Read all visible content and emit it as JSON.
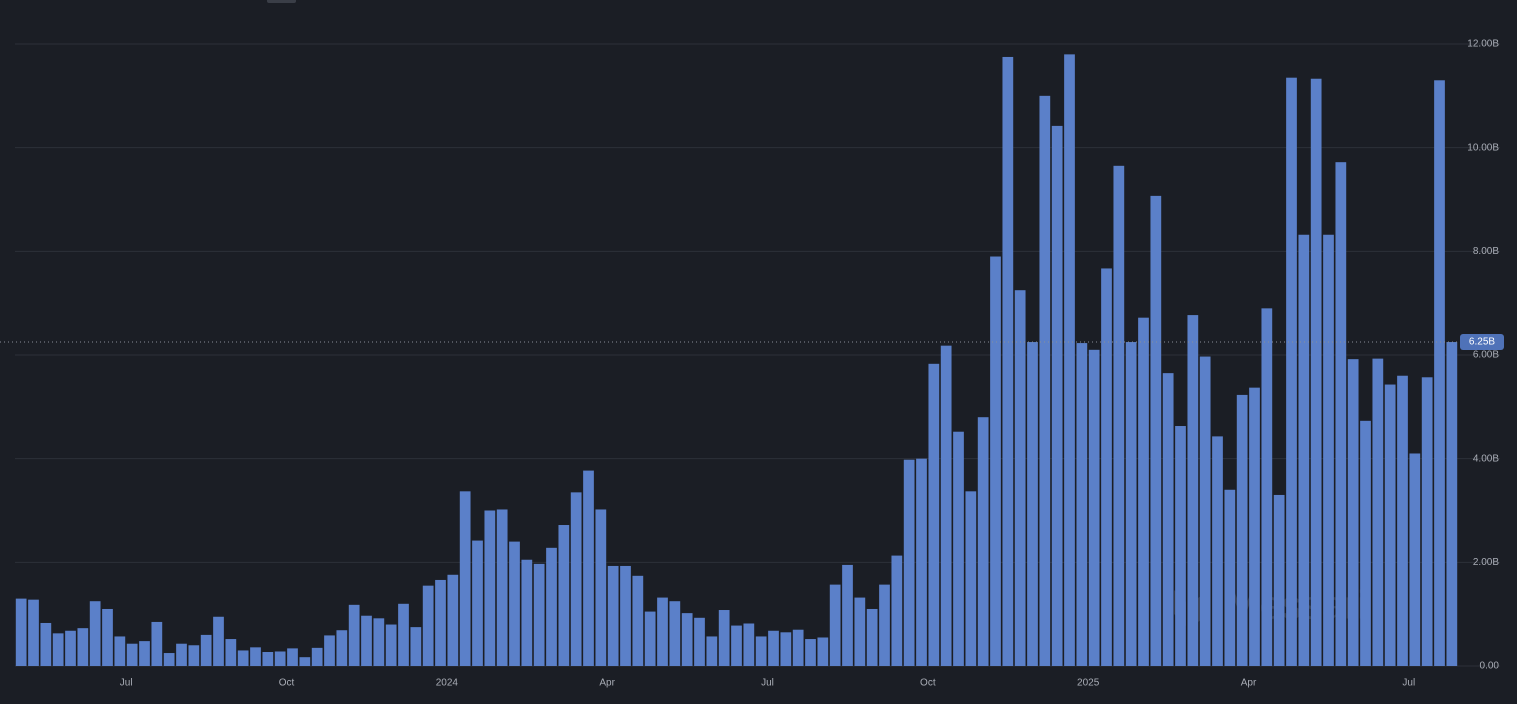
{
  "chart_data": {
    "type": "bar",
    "categories": [
      null,
      null,
      null,
      null,
      null,
      null,
      null,
      null,
      null,
      "Jul",
      null,
      null,
      null,
      null,
      null,
      null,
      null,
      null,
      null,
      null,
      null,
      null,
      "Oct",
      null,
      null,
      null,
      null,
      null,
      null,
      null,
      null,
      null,
      null,
      null,
      null,
      "2024",
      null,
      null,
      null,
      null,
      null,
      null,
      null,
      null,
      null,
      null,
      null,
      null,
      "Apr",
      null,
      null,
      null,
      null,
      null,
      null,
      null,
      null,
      null,
      null,
      null,
      null,
      "Jul",
      null,
      null,
      null,
      null,
      null,
      null,
      null,
      null,
      null,
      null,
      null,
      null,
      "Oct",
      null,
      null,
      null,
      null,
      null,
      null,
      null,
      null,
      null,
      null,
      null,
      null,
      "2025",
      null,
      null,
      null,
      null,
      null,
      null,
      null,
      null,
      null,
      null,
      null,
      null,
      "Apr",
      null,
      null,
      null,
      null,
      null,
      null,
      null,
      null,
      null,
      null,
      null,
      null,
      "Jul",
      null,
      null,
      null
    ],
    "values": [
      1.3,
      1.28,
      0.83,
      0.63,
      0.68,
      0.73,
      1.25,
      1.1,
      0.57,
      0.43,
      0.48,
      0.85,
      0.25,
      0.43,
      0.4,
      0.6,
      0.95,
      0.52,
      0.3,
      0.36,
      0.27,
      0.28,
      0.34,
      0.17,
      0.35,
      0.59,
      0.69,
      1.18,
      0.97,
      0.92,
      0.8,
      1.2,
      0.75,
      1.55,
      1.66,
      1.76,
      3.37,
      2.42,
      3.0,
      3.02,
      2.4,
      2.05,
      1.97,
      2.28,
      2.72,
      3.35,
      3.77,
      3.02,
      1.93,
      1.93,
      1.74,
      1.05,
      1.32,
      1.25,
      1.02,
      0.93,
      0.57,
      1.08,
      0.78,
      0.82,
      0.57,
      0.68,
      0.65,
      0.7,
      0.52,
      0.55,
      1.57,
      1.95,
      1.32,
      1.1,
      1.57,
      2.13,
      3.98,
      4.0,
      5.83,
      6.18,
      4.52,
      3.37,
      4.8,
      7.9,
      11.75,
      7.25,
      6.25,
      11.0,
      10.42,
      11.8,
      6.23,
      6.1,
      7.67,
      9.65,
      6.25,
      6.72,
      9.07,
      5.65,
      4.63,
      6.77,
      5.97,
      4.43,
      3.4,
      5.23,
      5.37,
      6.9,
      3.3,
      11.35,
      8.32,
      11.33,
      8.32,
      9.72,
      5.92,
      4.73,
      5.93,
      5.43,
      5.6,
      4.1,
      5.57,
      11.3,
      6.25
    ],
    "color": "#5b80c9",
    "ylim": [
      0,
      12
    ],
    "yticks": [
      {
        "value": 0,
        "label": "0.00"
      },
      {
        "value": 2,
        "label": "2.00B"
      },
      {
        "value": 4,
        "label": "4.00B"
      },
      {
        "value": 6,
        "label": "6.00B"
      },
      {
        "value": 8,
        "label": "8.00B"
      },
      {
        "value": 10,
        "label": "10.00B"
      },
      {
        "value": 12,
        "label": "12.00B"
      }
    ],
    "grid": true,
    "annotation": {
      "value": 6.25,
      "label": "6.25B"
    },
    "watermark": "Messari"
  }
}
